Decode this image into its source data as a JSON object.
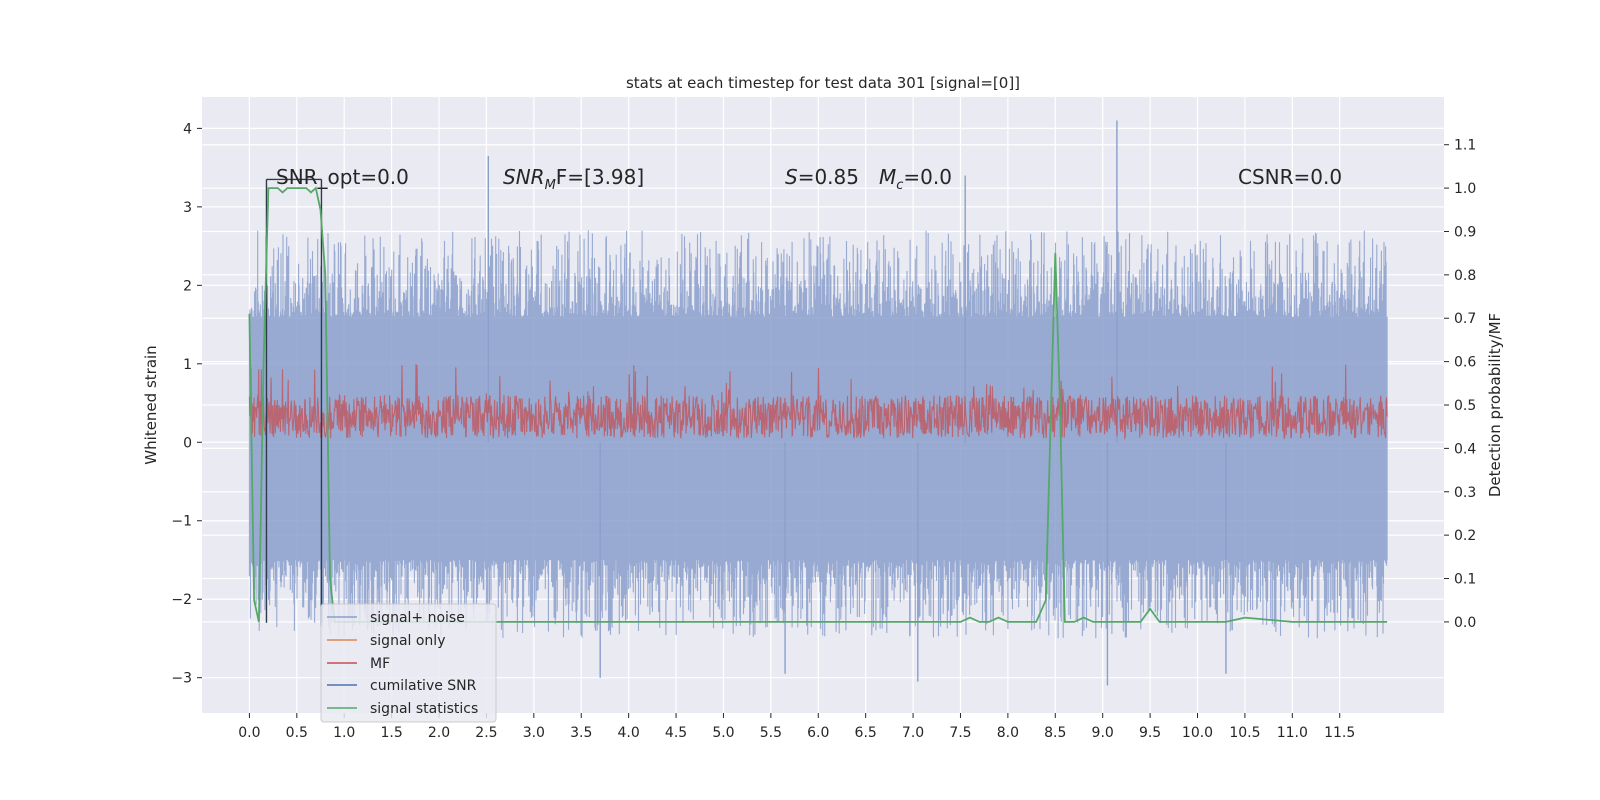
{
  "chart_data": {
    "type": "line",
    "title": "stats at each timestep for test data 301 [signal=[0]]",
    "xlabel": "",
    "ylabel": "Whitened strain",
    "y2label": "Detection probability/MF",
    "xlim": [
      -0.5,
      12.6
    ],
    "ylim": [
      -3.45,
      4.4
    ],
    "y2lim": [
      -0.21,
      1.21
    ],
    "x_ticks": [
      0.0,
      0.5,
      1.0,
      1.5,
      2.0,
      2.5,
      3.0,
      3.5,
      4.0,
      4.5,
      5.0,
      5.5,
      6.0,
      6.5,
      7.0,
      7.5,
      8.0,
      8.5,
      9.0,
      9.5,
      10.0,
      10.5,
      11.0,
      11.5
    ],
    "x_tick_labels": [
      "0.0",
      "0.5",
      "1.0",
      "1.5",
      "2.0",
      "2.5",
      "3.0",
      "3.5",
      "4.0",
      "4.5",
      "5.0",
      "5.5",
      "6.0",
      "6.5",
      "7.0",
      "7.5",
      "8.0",
      "8.5",
      "9.0",
      "9.5",
      "10.0",
      "10.5",
      "11.0",
      "11.5"
    ],
    "y_ticks": [
      4,
      3,
      2,
      1,
      0,
      -1,
      -2,
      -3
    ],
    "y_tick_labels": [
      "4",
      "3",
      "2",
      "1",
      "0",
      "−1",
      "−2",
      "−3"
    ],
    "y2_ticks": [
      1.1,
      1.0,
      0.9,
      0.8,
      0.7,
      0.6,
      0.5,
      0.4,
      0.3,
      0.2,
      0.1,
      0.0
    ],
    "y2_tick_labels": [
      "1.1",
      "1.0",
      "0.9",
      "0.8",
      "0.7",
      "0.6",
      "0.5",
      "0.4",
      "0.3",
      "0.2",
      "0.1",
      "0.0"
    ],
    "grid": true,
    "legend_position": "lower-left",
    "annotations": {
      "snr_opt": "SNR_opt=0.0",
      "snr_mf_main": "SNR",
      "snr_mf_sub": "M",
      "snr_mf_tail": "F=[3.98]",
      "s_sym": "S",
      "s_val": "=0.85",
      "mc_sym": "M",
      "mc_sub": "c",
      "mc_val": "=0.0",
      "csnr": "CSNR=0.0"
    },
    "series": [
      {
        "name": "signal+ noise",
        "color": "#8a9fcb",
        "axis": "left",
        "x_range": [
          0.0,
          12.0
        ],
        "envelope_upper": 1.6,
        "envelope_lower": -1.5,
        "peaks": [
          {
            "x": 2.52,
            "y": 3.65
          },
          {
            "x": 7.55,
            "y": 3.4
          },
          {
            "x": 9.15,
            "y": 4.1
          },
          {
            "x": 3.7,
            "y": -3.0
          },
          {
            "x": 9.05,
            "y": -3.1
          },
          {
            "x": 7.05,
            "y": -3.05
          },
          {
            "x": 5.65,
            "y": -2.95
          },
          {
            "x": 10.3,
            "y": -2.95
          }
        ]
      },
      {
        "name": "signal only",
        "color": "#dd8452",
        "axis": "left",
        "values": []
      },
      {
        "name": "MF",
        "color": "#c44e52",
        "axis": "left",
        "x_range": [
          0.0,
          12.0
        ],
        "band_upper": 0.6,
        "band_lower": 0.05,
        "max": 1.0
      },
      {
        "name": "cumilative SNR",
        "color": "#2f3a4a",
        "axis": "left",
        "segments": [
          {
            "x": 0.18,
            "y0": -2.3,
            "y1": 3.35
          },
          {
            "x": 0.76,
            "y0": -2.3,
            "y1": 3.35
          }
        ]
      },
      {
        "name": "signal statistics",
        "color": "#55a868",
        "axis": "right",
        "x": [
          0.0,
          0.05,
          0.1,
          0.15,
          0.2,
          0.25,
          0.3,
          0.35,
          0.4,
          0.45,
          0.5,
          0.55,
          0.6,
          0.65,
          0.7,
          0.75,
          0.8,
          0.85,
          0.9,
          1.0,
          7.5,
          7.6,
          7.7,
          7.8,
          7.9,
          8.0,
          8.1,
          8.2,
          8.3,
          8.4,
          8.45,
          8.5,
          8.55,
          8.6,
          8.65,
          8.7,
          8.8,
          8.9,
          9.0,
          9.4,
          9.5,
          9.6,
          10.0,
          10.2,
          10.3,
          10.5,
          11.0,
          11.3,
          11.4,
          11.5,
          11.6,
          11.7,
          12.0
        ],
        "values": [
          0.71,
          0.05,
          0.0,
          0.6,
          1.0,
          1.0,
          1.0,
          0.99,
          1.0,
          1.0,
          1.0,
          1.0,
          1.0,
          0.99,
          1.0,
          0.95,
          0.8,
          0.1,
          0.0,
          0.0,
          0.0,
          0.01,
          0.0,
          0.0,
          0.01,
          0.0,
          0.0,
          0.0,
          0.0,
          0.05,
          0.45,
          0.85,
          0.5,
          0.0,
          0.0,
          0.0,
          0.01,
          0.0,
          0.0,
          0.0,
          0.03,
          0.0,
          0.0,
          0.0,
          0.0,
          0.01,
          0.0,
          0.0,
          0.0,
          0.0,
          0.0,
          0.0,
          0.0
        ]
      }
    ]
  }
}
